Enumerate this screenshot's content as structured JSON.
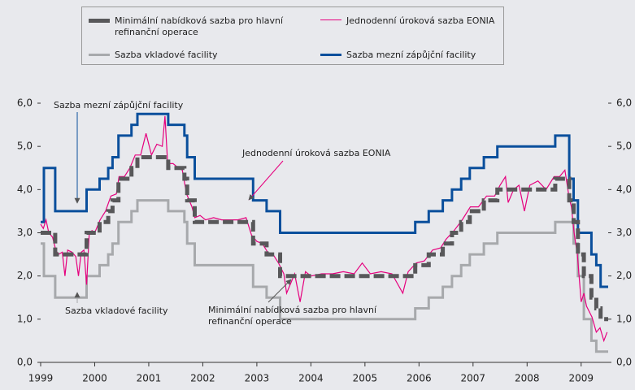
{
  "chart_data": {
    "type": "line",
    "drawstyle": "steps-post",
    "xlim": [
      1999,
      2009.5
    ],
    "xticks": [
      1999,
      2000,
      2001,
      2002,
      2003,
      2004,
      2005,
      2006,
      2007,
      2008,
      2009
    ],
    "ylim": [
      0,
      6
    ],
    "yticks": [
      {
        "value": 0,
        "label": "0,0"
      },
      {
        "value": 1,
        "label": "1,0"
      },
      {
        "value": 2,
        "label": "2,0"
      },
      {
        "value": 3,
        "label": "3,0"
      },
      {
        "value": 4,
        "label": "4,0"
      },
      {
        "value": 5,
        "label": "5,0"
      },
      {
        "value": 6,
        "label": "6,0"
      }
    ],
    "y2lim": [
      0,
      6
    ],
    "y2ticks": [
      {
        "value": 0,
        "label": "0,0"
      },
      {
        "value": 1,
        "label": "1,0"
      },
      {
        "value": 2,
        "label": "2,0"
      },
      {
        "value": 3,
        "label": "3,0"
      },
      {
        "value": 4,
        "label": "4,0"
      },
      {
        "value": 5,
        "label": "5,0"
      },
      {
        "value": 6,
        "label": "6,0"
      }
    ],
    "grid": false,
    "series": [
      {
        "name": "Minimální nabídková sazba pro hlavní refinanční operace",
        "color": "#58585a",
        "style": "dashed",
        "x": [
          1999.0,
          1999.27,
          1999.85,
          2000.09,
          2000.25,
          2000.33,
          2000.44,
          2000.68,
          2000.79,
          2001.36,
          2001.66,
          2001.71,
          2001.85,
          2002.93,
          2003.18,
          2003.43,
          2005.93,
          2006.18,
          2006.44,
          2006.61,
          2006.78,
          2006.94,
          2007.2,
          2007.45,
          2008.52,
          2008.78,
          2008.86,
          2008.94,
          2009.05,
          2009.19,
          2009.28,
          2009.36,
          2009.5
        ],
        "values": [
          3.0,
          2.5,
          3.0,
          3.25,
          3.5,
          3.75,
          4.25,
          4.5,
          4.75,
          4.5,
          4.25,
          3.75,
          3.25,
          2.75,
          2.5,
          2.0,
          2.25,
          2.5,
          2.75,
          3.0,
          3.25,
          3.5,
          3.75,
          4.0,
          4.25,
          3.75,
          3.25,
          2.5,
          2.0,
          1.5,
          1.25,
          1.0,
          1.0
        ]
      },
      {
        "name": "Jednodenní úroková sazba EONIA",
        "color": "#e6007e",
        "style": "solid",
        "x": [
          1999.0,
          1999.05,
          1999.1,
          1999.15,
          1999.22,
          1999.28,
          1999.33,
          1999.4,
          1999.45,
          1999.5,
          1999.58,
          1999.65,
          1999.7,
          1999.75,
          1999.8,
          1999.85,
          1999.9,
          1999.95,
          2000.0,
          2000.1,
          2000.2,
          2000.3,
          2000.4,
          2000.45,
          2000.55,
          2000.65,
          2000.75,
          2000.85,
          2000.95,
          2001.05,
          2001.15,
          2001.25,
          2001.3,
          2001.35,
          2001.45,
          2001.55,
          2001.62,
          2001.7,
          2001.8,
          2001.85,
          2001.95,
          2002.05,
          2002.2,
          2002.35,
          2002.5,
          2002.65,
          2002.8,
          2002.9,
          2003.0,
          2003.1,
          2003.2,
          2003.3,
          2003.4,
          2003.5,
          2003.55,
          2003.7,
          2003.8,
          2003.9,
          2004.0,
          2004.2,
          2004.4,
          2004.6,
          2004.8,
          2004.95,
          2005.1,
          2005.3,
          2005.5,
          2005.7,
          2005.8,
          2005.95,
          2006.1,
          2006.25,
          2006.4,
          2006.5,
          2006.65,
          2006.8,
          2006.95,
          2007.1,
          2007.25,
          2007.4,
          2007.5,
          2007.6,
          2007.65,
          2007.75,
          2007.85,
          2007.95,
          2008.05,
          2008.2,
          2008.35,
          2008.5,
          2008.6,
          2008.7,
          2008.78,
          2008.82,
          2008.87,
          2008.93,
          2009.0,
          2009.05,
          2009.1,
          2009.2,
          2009.28,
          2009.35,
          2009.42,
          2009.48
        ],
        "values": [
          3.2,
          3.1,
          3.3,
          3.0,
          2.9,
          2.6,
          2.5,
          2.55,
          2.0,
          2.6,
          2.55,
          2.45,
          2.0,
          2.55,
          2.6,
          1.8,
          3.0,
          3.05,
          3.0,
          3.3,
          3.5,
          3.85,
          3.9,
          4.3,
          4.3,
          4.5,
          4.8,
          4.8,
          5.3,
          4.8,
          5.05,
          5.0,
          5.7,
          4.6,
          4.6,
          4.5,
          4.45,
          3.9,
          3.6,
          3.35,
          3.4,
          3.3,
          3.35,
          3.3,
          3.3,
          3.3,
          3.35,
          2.95,
          2.8,
          2.75,
          2.55,
          2.5,
          2.3,
          2.05,
          1.6,
          2.05,
          1.4,
          2.1,
          2.0,
          2.05,
          2.05,
          2.1,
          2.05,
          2.3,
          2.05,
          2.1,
          2.05,
          1.6,
          2.1,
          2.3,
          2.35,
          2.6,
          2.65,
          2.85,
          3.05,
          3.3,
          3.6,
          3.6,
          3.85,
          3.85,
          4.1,
          4.3,
          3.7,
          4.0,
          4.1,
          3.5,
          4.1,
          4.2,
          4.0,
          4.3,
          4.3,
          4.45,
          3.8,
          3.6,
          3.0,
          2.5,
          1.4,
          1.6,
          1.3,
          1.05,
          0.7,
          0.8,
          0.5,
          0.7
        ]
      },
      {
        "name": "Sazba vkladové facility",
        "color": "#a7a9ac",
        "style": "step",
        "x": [
          1999.0,
          1999.06,
          1999.27,
          1999.85,
          2000.09,
          2000.25,
          2000.33,
          2000.44,
          2000.68,
          2000.79,
          2001.36,
          2001.66,
          2001.71,
          2001.85,
          2002.93,
          2003.18,
          2003.43,
          2005.93,
          2006.18,
          2006.44,
          2006.61,
          2006.78,
          2006.94,
          2007.2,
          2007.45,
          2008.52,
          2008.78,
          2008.86,
          2008.94,
          2009.05,
          2009.19,
          2009.28,
          2009.36,
          2009.5
        ],
        "values": [
          2.75,
          2.0,
          1.5,
          2.0,
          2.25,
          2.5,
          2.75,
          3.25,
          3.5,
          3.75,
          3.5,
          3.25,
          2.75,
          2.25,
          1.75,
          1.5,
          1.0,
          1.25,
          1.5,
          1.75,
          2.0,
          2.25,
          2.5,
          2.75,
          3.0,
          3.25,
          3.25,
          2.75,
          2.0,
          1.0,
          0.5,
          0.25,
          0.25,
          0.25
        ]
      },
      {
        "name": "Sazba mezní zápůjční facility",
        "color": "#0a4f9c",
        "style": "step",
        "x": [
          1999.0,
          1999.06,
          1999.27,
          1999.85,
          2000.09,
          2000.25,
          2000.33,
          2000.44,
          2000.68,
          2000.79,
          2001.36,
          2001.66,
          2001.71,
          2001.85,
          2002.93,
          2003.18,
          2003.43,
          2005.93,
          2006.18,
          2006.44,
          2006.61,
          2006.78,
          2006.94,
          2007.2,
          2007.45,
          2008.52,
          2008.78,
          2008.86,
          2008.94,
          2009.05,
          2009.19,
          2009.28,
          2009.36,
          2009.5
        ],
        "values": [
          3.25,
          4.5,
          3.5,
          4.0,
          4.25,
          4.5,
          4.75,
          5.25,
          5.5,
          5.75,
          5.5,
          5.25,
          4.75,
          4.25,
          3.75,
          3.5,
          3.0,
          3.25,
          3.5,
          3.75,
          4.0,
          4.25,
          4.5,
          4.75,
          5.0,
          5.25,
          4.25,
          3.75,
          3.0,
          3.0,
          2.5,
          2.25,
          1.75,
          1.75
        ]
      }
    ],
    "annotations": [
      "Sazba mezní zápůjční facility",
      "Jednodenní úroková sazba EONIA",
      "Sazba vkladové facility",
      "Minimální nabídková sazba pro hlavní refinanční operace"
    ]
  }
}
